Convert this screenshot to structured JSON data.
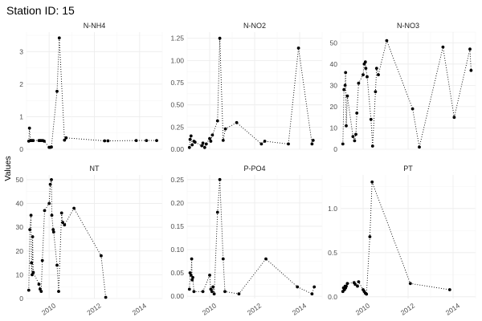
{
  "title": "Station ID: 15",
  "chart_data": {
    "type": "scatter",
    "ylabel": "Values",
    "x_ticks": [
      "2010",
      "2012",
      "2014"
    ],
    "x_range": [
      2009.0,
      2015.0
    ],
    "panels": [
      {
        "label": "N-NH4",
        "yrange": [
          0,
          3.6
        ],
        "yticks": [
          "0",
          "1",
          "2",
          "3"
        ],
        "points": [
          [
            2009.1,
            0.25
          ],
          [
            2009.13,
            0.65
          ],
          [
            2009.17,
            0.27
          ],
          [
            2009.2,
            0.27
          ],
          [
            2009.25,
            0.27
          ],
          [
            2009.3,
            0.27
          ],
          [
            2009.55,
            0.27
          ],
          [
            2009.6,
            0.27
          ],
          [
            2009.65,
            0.27
          ],
          [
            2009.72,
            0.27
          ],
          [
            2009.78,
            0.25
          ],
          [
            2010.0,
            0.06
          ],
          [
            2010.05,
            0.06
          ],
          [
            2010.1,
            0.07
          ],
          [
            2010.35,
            1.78
          ],
          [
            2010.45,
            3.42
          ],
          [
            2010.68,
            0.28
          ],
          [
            2010.75,
            0.35
          ],
          [
            2012.45,
            0.26
          ],
          [
            2012.6,
            0.26
          ],
          [
            2013.85,
            0.27
          ],
          [
            2014.3,
            0.27
          ],
          [
            2014.75,
            0.27
          ]
        ]
      },
      {
        "label": "N-NO2",
        "yrange": [
          0,
          1.32
        ],
        "yticks": [
          "0.00",
          "0.25",
          "0.50",
          "0.75",
          "1.00",
          "1.25"
        ],
        "points": [
          [
            2009.1,
            0.02
          ],
          [
            2009.13,
            0.11
          ],
          [
            2009.17,
            0.15
          ],
          [
            2009.22,
            0.05
          ],
          [
            2009.3,
            0.09
          ],
          [
            2009.35,
            0.08
          ],
          [
            2009.65,
            0.04
          ],
          [
            2009.7,
            0.07
          ],
          [
            2009.78,
            0.02
          ],
          [
            2009.85,
            0.06
          ],
          [
            2010.0,
            0.12
          ],
          [
            2010.05,
            0.09
          ],
          [
            2010.12,
            0.16
          ],
          [
            2010.35,
            0.32
          ],
          [
            2010.45,
            1.25
          ],
          [
            2010.6,
            0.1
          ],
          [
            2010.7,
            0.23
          ],
          [
            2011.2,
            0.3
          ],
          [
            2012.3,
            0.06
          ],
          [
            2012.45,
            0.09
          ],
          [
            2013.5,
            0.06
          ],
          [
            2013.95,
            1.14
          ],
          [
            2014.55,
            0.06
          ],
          [
            2014.6,
            0.1
          ]
        ]
      },
      {
        "label": "N-NO3",
        "yrange": [
          0,
          55
        ],
        "yticks": [
          "0",
          "10",
          "20",
          "30",
          "40",
          "50"
        ],
        "points": [
          [
            2009.1,
            2.5
          ],
          [
            2009.15,
            28
          ],
          [
            2009.2,
            30
          ],
          [
            2009.22,
            36
          ],
          [
            2009.25,
            11
          ],
          [
            2009.3,
            25
          ],
          [
            2009.55,
            6
          ],
          [
            2009.62,
            4
          ],
          [
            2009.68,
            7
          ],
          [
            2009.72,
            17
          ],
          [
            2009.8,
            31
          ],
          [
            2010.0,
            35
          ],
          [
            2010.05,
            40
          ],
          [
            2010.1,
            41
          ],
          [
            2010.12,
            38
          ],
          [
            2010.18,
            34
          ],
          [
            2010.35,
            14
          ],
          [
            2010.42,
            1.5
          ],
          [
            2010.55,
            27
          ],
          [
            2010.6,
            38
          ],
          [
            2010.68,
            35
          ],
          [
            2011.05,
            51
          ],
          [
            2012.2,
            19
          ],
          [
            2012.5,
            1
          ],
          [
            2013.55,
            48
          ],
          [
            2014.05,
            15
          ],
          [
            2014.75,
            47
          ],
          [
            2014.8,
            37
          ]
        ]
      },
      {
        "label": "NT",
        "yrange": [
          0,
          52
        ],
        "yticks": [
          "0",
          "10",
          "20",
          "30",
          "40",
          "50"
        ],
        "points": [
          [
            2009.1,
            3.5
          ],
          [
            2009.15,
            29
          ],
          [
            2009.2,
            35
          ],
          [
            2009.22,
            15
          ],
          [
            2009.25,
            10
          ],
          [
            2009.27,
            26
          ],
          [
            2009.3,
            11
          ],
          [
            2009.55,
            6
          ],
          [
            2009.6,
            4
          ],
          [
            2009.65,
            3
          ],
          [
            2009.7,
            16
          ],
          [
            2009.8,
            37
          ],
          [
            2010.0,
            40
          ],
          [
            2010.05,
            48
          ],
          [
            2010.1,
            50
          ],
          [
            2010.12,
            35
          ],
          [
            2010.18,
            29
          ],
          [
            2010.2,
            28
          ],
          [
            2010.35,
            14
          ],
          [
            2010.42,
            3
          ],
          [
            2010.55,
            36
          ],
          [
            2010.6,
            32
          ],
          [
            2010.68,
            31
          ],
          [
            2011.1,
            38
          ],
          [
            2012.3,
            18
          ],
          [
            2012.5,
            0.5
          ]
        ]
      },
      {
        "label": "P-PO4",
        "yrange": [
          -0.005,
          0.26
        ],
        "yticks": [
          "0.00",
          "0.05",
          "0.10",
          "0.15",
          "0.20",
          "0.25"
        ],
        "points": [
          [
            2009.1,
            0.015
          ],
          [
            2009.13,
            0.05
          ],
          [
            2009.17,
            0.045
          ],
          [
            2009.2,
            0.08
          ],
          [
            2009.22,
            0.035
          ],
          [
            2009.25,
            0.04
          ],
          [
            2009.3,
            0.01
          ],
          [
            2009.7,
            0.01
          ],
          [
            2010.0,
            0.045
          ],
          [
            2010.05,
            0.015
          ],
          [
            2010.1,
            0.01
          ],
          [
            2010.15,
            0.02
          ],
          [
            2010.2,
            0.005
          ],
          [
            2010.35,
            0.18
          ],
          [
            2010.45,
            0.25
          ],
          [
            2010.6,
            0.08
          ],
          [
            2010.68,
            0.01
          ],
          [
            2011.3,
            0.005
          ],
          [
            2012.5,
            0.08
          ],
          [
            2013.9,
            0.02
          ],
          [
            2014.55,
            0.005
          ],
          [
            2014.65,
            0.02
          ]
        ]
      },
      {
        "label": "PT",
        "yrange": [
          -0.02,
          1.38
        ],
        "yticks": [
          "0.0",
          "0.5",
          "1.0"
        ],
        "points": [
          [
            2009.1,
            0.06
          ],
          [
            2009.13,
            0.1
          ],
          [
            2009.17,
            0.08
          ],
          [
            2009.2,
            0.12
          ],
          [
            2009.22,
            0.1
          ],
          [
            2009.25,
            0.12
          ],
          [
            2009.3,
            0.15
          ],
          [
            2009.6,
            0.16
          ],
          [
            2009.65,
            0.14
          ],
          [
            2009.75,
            0.12
          ],
          [
            2009.8,
            0.17
          ],
          [
            2010.0,
            0.08
          ],
          [
            2010.05,
            0.06
          ],
          [
            2010.1,
            0.04
          ],
          [
            2010.15,
            0.03
          ],
          [
            2010.3,
            0.68
          ],
          [
            2010.4,
            1.3
          ],
          [
            2012.1,
            0.15
          ],
          [
            2013.85,
            0.08
          ]
        ]
      }
    ]
  }
}
